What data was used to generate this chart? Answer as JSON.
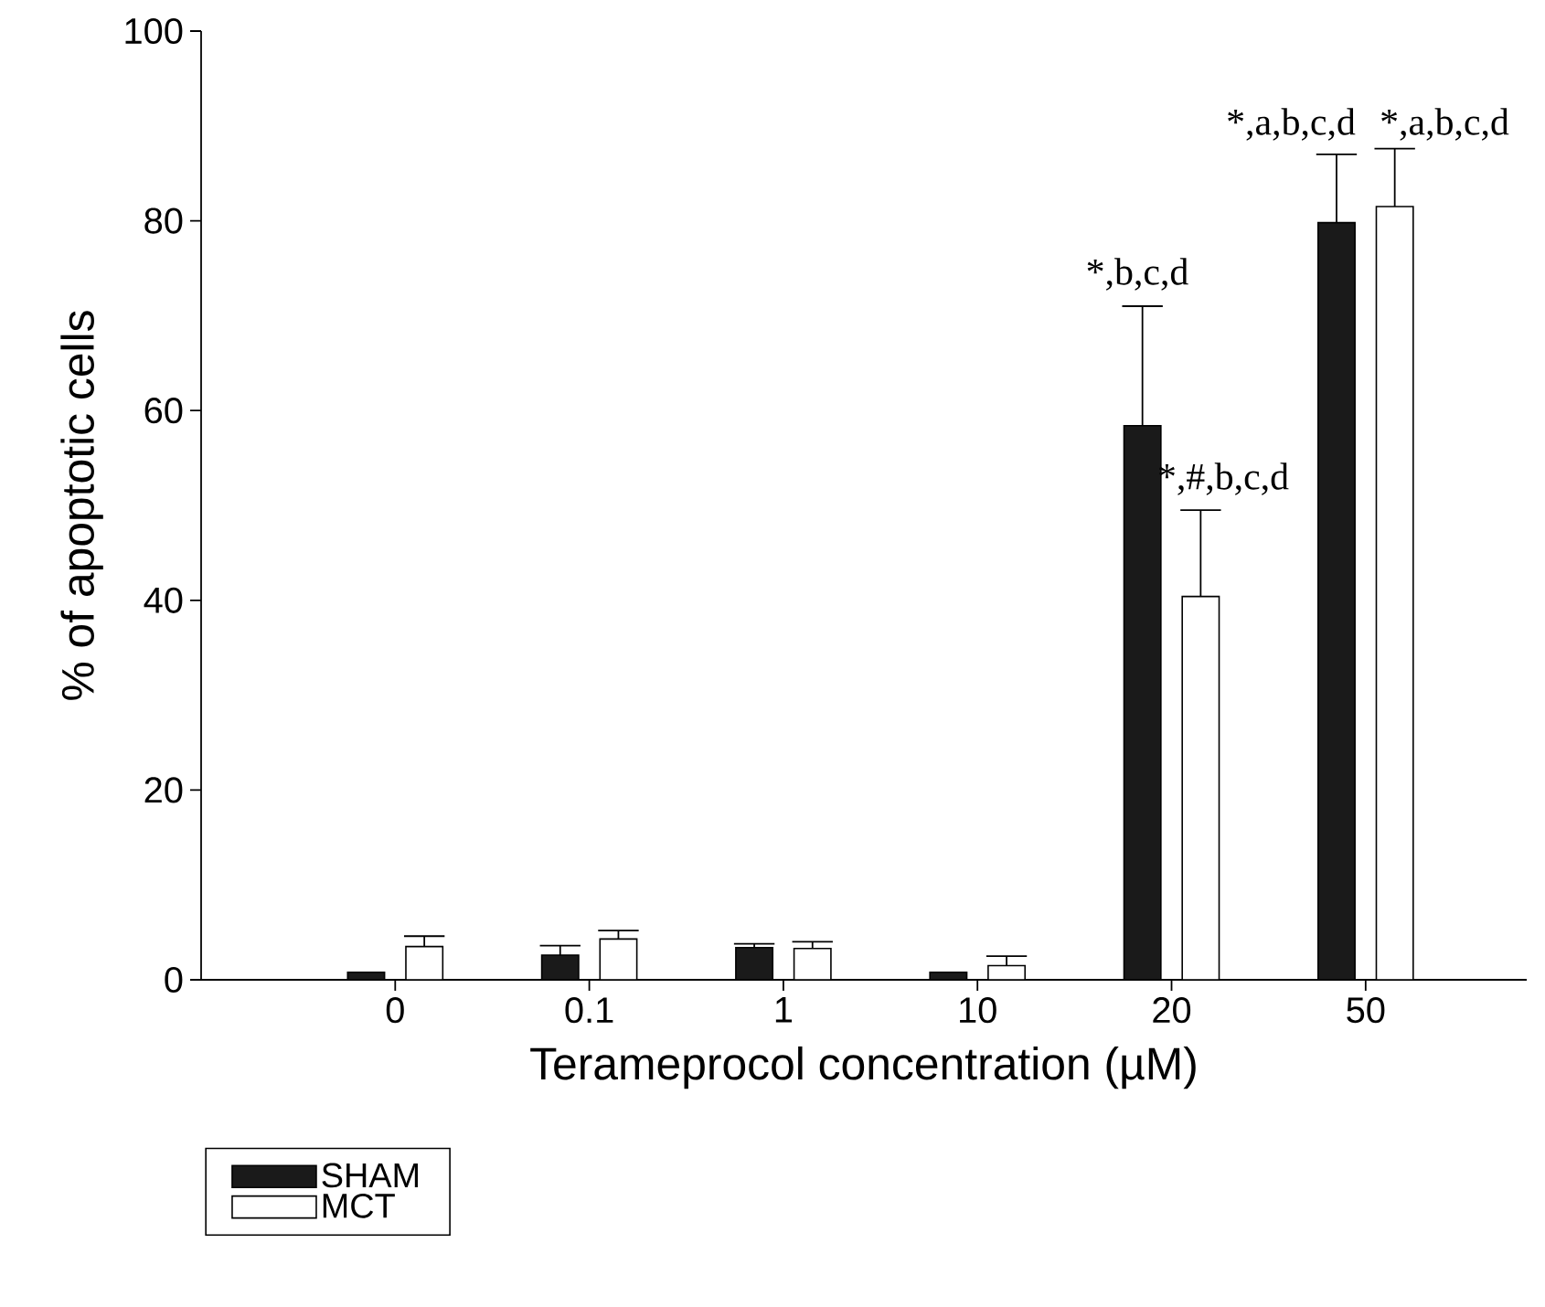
{
  "chart_data": {
    "type": "bar",
    "xlabel": "Terameprocol concentration (µM)",
    "ylabel": "% of apoptotic cells",
    "categories": [
      "0",
      "0.1",
      "1",
      "10",
      "20",
      "50"
    ],
    "series": [
      {
        "name": "SHAM",
        "color": "#1a1a1a",
        "values": [
          0.8,
          2.6,
          3.4,
          0.8,
          58.4,
          79.8
        ],
        "errors": [
          null,
          1.0,
          0.4,
          null,
          12.6,
          7.2
        ]
      },
      {
        "name": "MCT",
        "color": "#ffffff",
        "values": [
          3.5,
          4.3,
          3.3,
          1.5,
          40.4,
          81.5
        ],
        "errors": [
          1.1,
          0.9,
          0.7,
          1.0,
          9.1,
          6.1
        ]
      }
    ],
    "ylim": [
      0,
      100
    ],
    "yticks": [
      0,
      20,
      40,
      60,
      80,
      100
    ],
    "grid": false,
    "legend": "bottom left",
    "annotations": [
      "*,b,c,d",
      "*,#,b,c,d",
      "*,a,b,c,d",
      "*,a,b,c,d"
    ]
  }
}
